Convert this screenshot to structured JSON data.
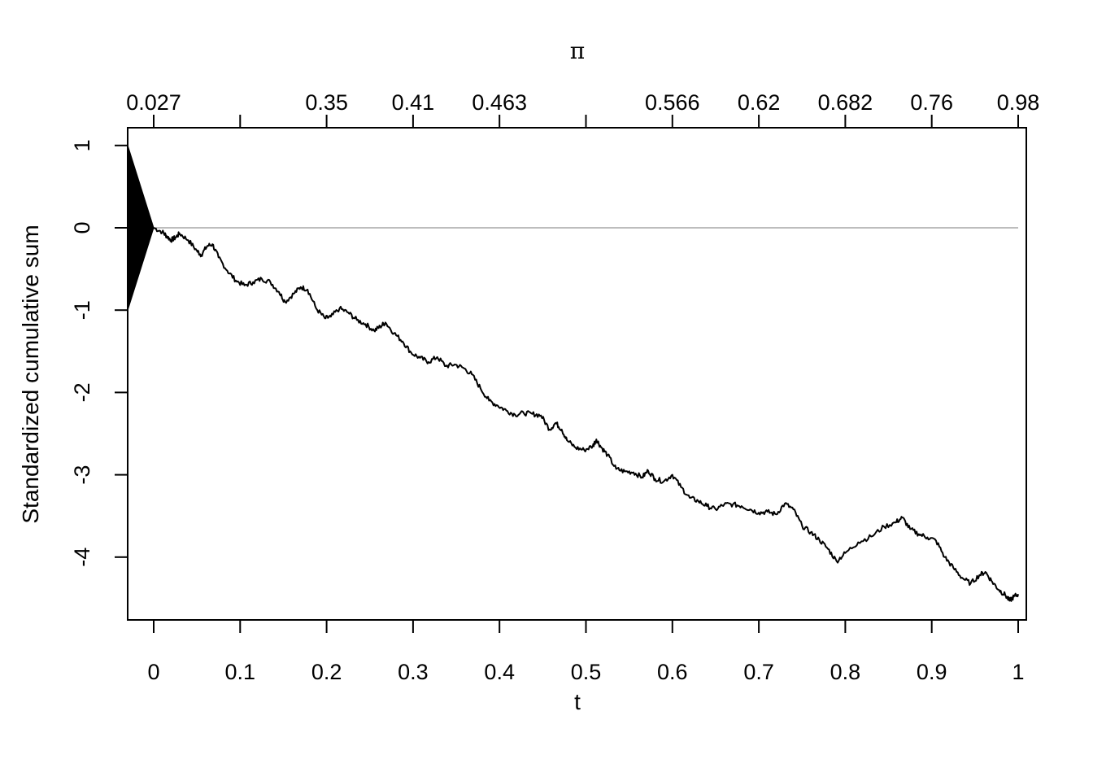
{
  "chart_data": {
    "type": "line",
    "xlabel": "t",
    "ylabel": "Standardized cumulative sum",
    "top_axis_label": "π",
    "xlim": [
      -0.03,
      1.0
    ],
    "ylim": [
      -4.75,
      1.0
    ],
    "x_ticks": [
      "0",
      "0.1",
      "0.2",
      "0.3",
      "0.4",
      "0.5",
      "0.6",
      "0.7",
      "0.8",
      "0.9",
      "1"
    ],
    "y_ticks": [
      "1",
      "0",
      "-1",
      "-2",
      "-3",
      "-4"
    ],
    "top_ticks": [
      {
        "t": 0.0,
        "label": "0.027"
      },
      {
        "t": 0.1,
        "label": ""
      },
      {
        "t": 0.2,
        "label": "0.35"
      },
      {
        "t": 0.3,
        "label": "0.41"
      },
      {
        "t": 0.4,
        "label": "0.463"
      },
      {
        "t": 0.5,
        "label": ""
      },
      {
        "t": 0.6,
        "label": "0.566"
      },
      {
        "t": 0.7,
        "label": "0.62"
      },
      {
        "t": 0.8,
        "label": "0.682"
      },
      {
        "t": 0.9,
        "label": "0.76"
      },
      {
        "t": 1.0,
        "label": "0.98"
      }
    ],
    "reference_line": {
      "y": 0,
      "color": "#bdbdbd"
    },
    "burn_in_band": {
      "t_start": -0.03,
      "t_end": 0.0,
      "upper": [
        1,
        0
      ],
      "lower": [
        -1,
        0
      ],
      "color": "#000000"
    },
    "series": [
      {
        "color": "#000000",
        "points": [
          [
            0.0,
            0.0
          ],
          [
            0.01,
            -0.05
          ],
          [
            0.015,
            -0.1
          ],
          [
            0.02,
            -0.15
          ],
          [
            0.025,
            -0.12
          ],
          [
            0.03,
            -0.07
          ],
          [
            0.04,
            -0.15
          ],
          [
            0.05,
            -0.28
          ],
          [
            0.055,
            -0.33
          ],
          [
            0.062,
            -0.22
          ],
          [
            0.068,
            -0.2
          ],
          [
            0.075,
            -0.36
          ],
          [
            0.085,
            -0.52
          ],
          [
            0.095,
            -0.64
          ],
          [
            0.105,
            -0.7
          ],
          [
            0.115,
            -0.66
          ],
          [
            0.125,
            -0.62
          ],
          [
            0.135,
            -0.66
          ],
          [
            0.145,
            -0.78
          ],
          [
            0.152,
            -0.9
          ],
          [
            0.162,
            -0.8
          ],
          [
            0.17,
            -0.72
          ],
          [
            0.178,
            -0.75
          ],
          [
            0.188,
            -0.98
          ],
          [
            0.198,
            -1.1
          ],
          [
            0.205,
            -1.08
          ],
          [
            0.215,
            -0.98
          ],
          [
            0.225,
            -1.03
          ],
          [
            0.235,
            -1.12
          ],
          [
            0.245,
            -1.17
          ],
          [
            0.255,
            -1.25
          ],
          [
            0.262,
            -1.2
          ],
          [
            0.268,
            -1.15
          ],
          [
            0.278,
            -1.28
          ],
          [
            0.288,
            -1.38
          ],
          [
            0.298,
            -1.52
          ],
          [
            0.308,
            -1.58
          ],
          [
            0.318,
            -1.63
          ],
          [
            0.328,
            -1.57
          ],
          [
            0.338,
            -1.68
          ],
          [
            0.348,
            -1.66
          ],
          [
            0.358,
            -1.7
          ],
          [
            0.368,
            -1.78
          ],
          [
            0.378,
            -1.95
          ],
          [
            0.388,
            -2.1
          ],
          [
            0.398,
            -2.16
          ],
          [
            0.408,
            -2.22
          ],
          [
            0.418,
            -2.27
          ],
          [
            0.428,
            -2.25
          ],
          [
            0.438,
            -2.26
          ],
          [
            0.448,
            -2.28
          ],
          [
            0.458,
            -2.45
          ],
          [
            0.465,
            -2.37
          ],
          [
            0.472,
            -2.45
          ],
          [
            0.478,
            -2.58
          ],
          [
            0.488,
            -2.67
          ],
          [
            0.498,
            -2.7
          ],
          [
            0.508,
            -2.65
          ],
          [
            0.512,
            -2.57
          ],
          [
            0.518,
            -2.67
          ],
          [
            0.525,
            -2.76
          ],
          [
            0.535,
            -2.93
          ],
          [
            0.545,
            -2.96
          ],
          [
            0.555,
            -2.97
          ],
          [
            0.565,
            -3.03
          ],
          [
            0.572,
            -2.95
          ],
          [
            0.58,
            -3.05
          ],
          [
            0.59,
            -3.08
          ],
          [
            0.6,
            -3.0
          ],
          [
            0.61,
            -3.15
          ],
          [
            0.62,
            -3.28
          ],
          [
            0.63,
            -3.32
          ],
          [
            0.64,
            -3.38
          ],
          [
            0.65,
            -3.42
          ],
          [
            0.66,
            -3.36
          ],
          [
            0.67,
            -3.36
          ],
          [
            0.68,
            -3.38
          ],
          [
            0.69,
            -3.42
          ],
          [
            0.7,
            -3.46
          ],
          [
            0.71,
            -3.45
          ],
          [
            0.72,
            -3.48
          ],
          [
            0.73,
            -3.35
          ],
          [
            0.74,
            -3.42
          ],
          [
            0.75,
            -3.62
          ],
          [
            0.76,
            -3.7
          ],
          [
            0.77,
            -3.79
          ],
          [
            0.78,
            -3.9
          ],
          [
            0.79,
            -4.05
          ],
          [
            0.8,
            -3.95
          ],
          [
            0.815,
            -3.82
          ],
          [
            0.83,
            -3.75
          ],
          [
            0.845,
            -3.63
          ],
          [
            0.858,
            -3.58
          ],
          [
            0.866,
            -3.52
          ],
          [
            0.875,
            -3.66
          ],
          [
            0.885,
            -3.72
          ],
          [
            0.895,
            -3.76
          ],
          [
            0.905,
            -3.8
          ],
          [
            0.915,
            -4.0
          ],
          [
            0.925,
            -4.13
          ],
          [
            0.935,
            -4.25
          ],
          [
            0.945,
            -4.32
          ],
          [
            0.955,
            -4.22
          ],
          [
            0.962,
            -4.18
          ],
          [
            0.97,
            -4.3
          ],
          [
            0.978,
            -4.4
          ],
          [
            0.985,
            -4.46
          ],
          [
            0.99,
            -4.53
          ],
          [
            0.995,
            -4.48
          ],
          [
            1.0,
            -4.45
          ]
        ]
      }
    ]
  }
}
